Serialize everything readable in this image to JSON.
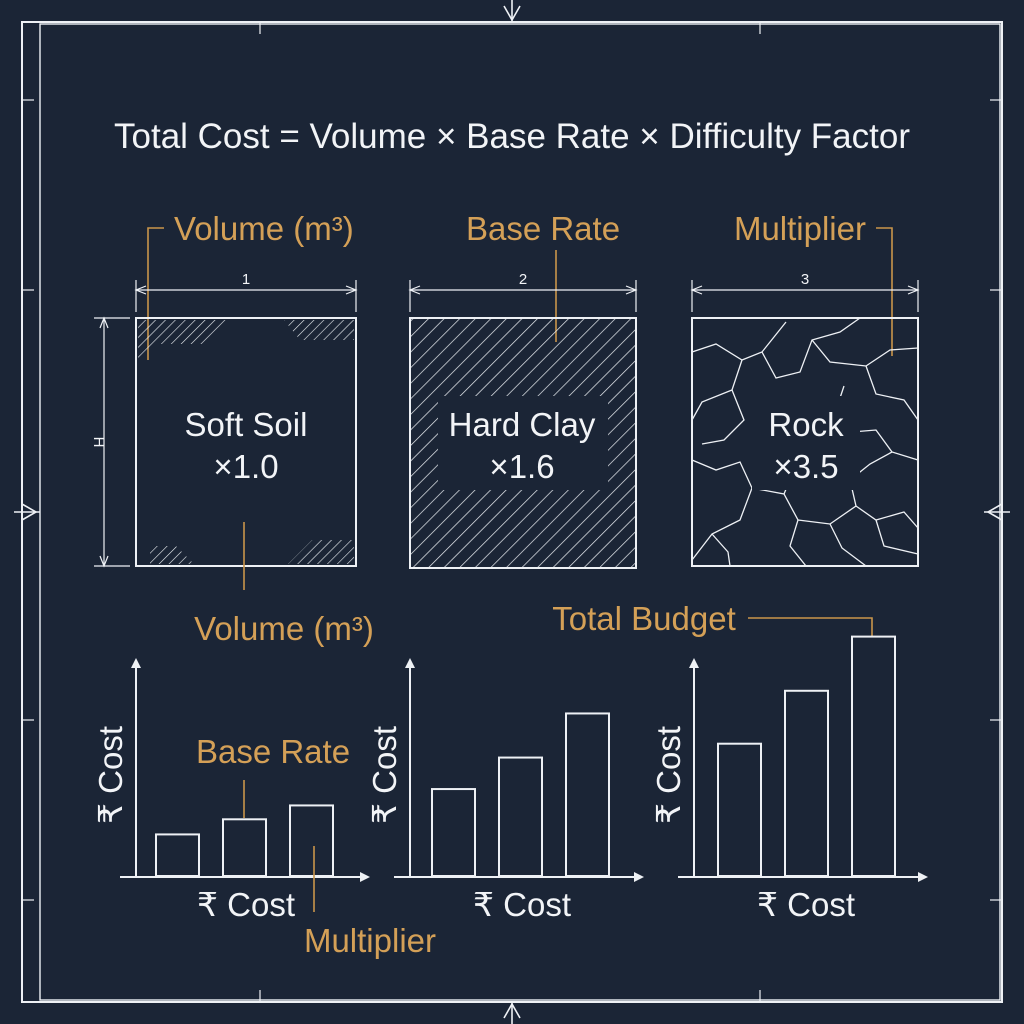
{
  "colors": {
    "background": "#1b2536",
    "line": "#eef1f5",
    "accent": "#d4a057"
  },
  "formula": "Total Cost = Volume × Base Rate × Difficulty Factor",
  "top_labels": {
    "volume": "Volume (m³)",
    "base_rate": "Base Rate",
    "multiplier": "Multiplier"
  },
  "dimensions": {
    "d1": "1",
    "d2": "2",
    "d3": "3",
    "height": "H"
  },
  "soil_boxes": [
    {
      "name": "Soft Soil",
      "factor": "×1.0",
      "pattern": "corner-hatch"
    },
    {
      "name": "Hard Clay",
      "factor": "×1.6",
      "pattern": "diagonal-hatch"
    },
    {
      "name": "Rock",
      "factor": "×3.5",
      "pattern": "cracks"
    }
  ],
  "middle_labels": {
    "volume": "Volume (m³)",
    "total_budget": "Total Budget"
  },
  "charts": [
    {
      "ylabel": "₹ Cost",
      "xlabel": "₹ Cost",
      "values": [
        0.33,
        0.45,
        0.56
      ],
      "labels": {
        "base_rate": "Base Rate",
        "multiplier": "Multiplier"
      }
    },
    {
      "ylabel": "₹ Cost",
      "xlabel": "₹ Cost",
      "values": [
        0.69,
        0.94,
        1.29
      ]
    },
    {
      "ylabel": "₹ Cost",
      "xlabel": "₹ Cost",
      "values": [
        1.05,
        1.47,
        1.9
      ]
    }
  ]
}
